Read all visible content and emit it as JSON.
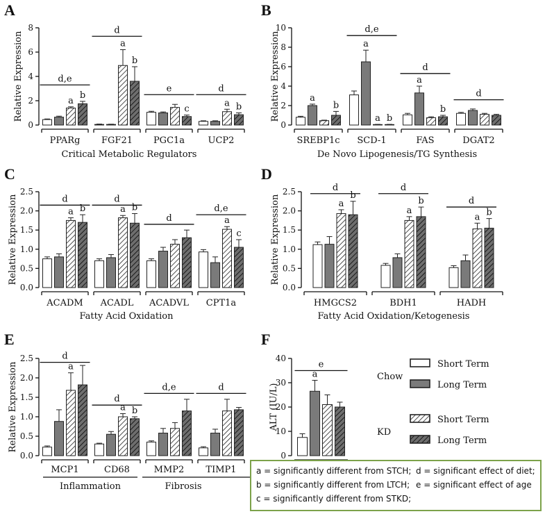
{
  "legend": {
    "chow_label": "Chow",
    "kd_label": "KD",
    "short_term": "Short Term",
    "long_term": "Long Term",
    "colors": {
      "white": "#ffffff",
      "gray": "#7a7a7a",
      "hatch_light": "#ffffff",
      "hatch_dark": "#6e6e6e",
      "box_border": "#7ca24a"
    }
  },
  "footnote": {
    "a": "a = significantly different from STCH;",
    "b": "b = significantly different from LTCH;",
    "c": "c = significantly different from STKD;",
    "d": "d = significant effect of diet;",
    "e": "e = significant effect of age"
  },
  "chart_data": [
    {
      "panel": "A",
      "type": "bar",
      "ylabel": "Relative Expression",
      "xlabel": "Critical Metabolic Regulators",
      "ylim": [
        0,
        8
      ],
      "yticks": [
        0,
        2,
        4,
        6,
        8
      ],
      "categories": [
        "PPARg",
        "FGF21",
        "PGC1a",
        "UCP2"
      ],
      "series": [
        {
          "values": [
            0.45,
            0.05,
            1.05,
            0.3
          ],
          "errors": [
            0.05,
            0.03,
            0.08,
            0.05
          ]
        },
        {
          "values": [
            0.65,
            0.05,
            1.0,
            0.3
          ],
          "errors": [
            0.08,
            0.02,
            0.08,
            0.05
          ]
        },
        {
          "values": [
            1.4,
            4.9,
            1.45,
            1.1
          ],
          "errors": [
            0.1,
            1.3,
            0.25,
            0.2
          ]
        },
        {
          "values": [
            1.75,
            3.6,
            0.7,
            0.85
          ],
          "errors": [
            0.2,
            1.2,
            0.12,
            0.15
          ]
        }
      ],
      "bar_letters": [
        [
          "",
          "",
          "a",
          "b"
        ],
        [
          "",
          "",
          "a",
          "b"
        ],
        [
          "",
          "",
          "",
          "c"
        ],
        [
          "",
          "",
          "a",
          "b"
        ]
      ],
      "brackets": [
        {
          "label": "d,e",
          "y": 3.3
        },
        {
          "label": "d",
          "y": 7.3
        },
        {
          "label": "e",
          "y": 2.5
        },
        {
          "label": "d",
          "y": 2.5
        }
      ]
    },
    {
      "panel": "B",
      "type": "bar",
      "ylabel": "Relative Expression",
      "xlabel": "De Novo Lipogenesis/TG Synthesis",
      "ylim": [
        0,
        10
      ],
      "yticks": [
        0,
        2,
        4,
        6,
        8,
        10
      ],
      "categories": [
        "SREBP1c",
        "SCD-1",
        "FAS",
        "DGAT2"
      ],
      "series": [
        {
          "values": [
            0.8,
            3.1,
            1.05,
            1.2
          ],
          "errors": [
            0.1,
            0.4,
            0.15,
            0.1
          ]
        },
        {
          "values": [
            2.0,
            6.5,
            3.3,
            1.5
          ],
          "errors": [
            0.15,
            1.2,
            0.7,
            0.15
          ]
        },
        {
          "values": [
            0.45,
            0.05,
            0.75,
            1.1
          ],
          "errors": [
            0.05,
            0.02,
            0.1,
            0.1
          ]
        },
        {
          "values": [
            1.0,
            0.05,
            0.85,
            1.0
          ],
          "errors": [
            0.4,
            0.02,
            0.15,
            0.1
          ]
        }
      ],
      "bar_letters": [
        [
          "",
          "a",
          "",
          "b"
        ],
        [
          "",
          "a",
          "a",
          "b"
        ],
        [
          "",
          "a",
          "",
          "b"
        ],
        [
          "",
          "",
          "",
          ""
        ]
      ],
      "brackets": [
        {
          "label": "",
          "y": 0
        },
        {
          "label": "d,e",
          "y": 9.2
        },
        {
          "label": "d",
          "y": 5.3
        },
        {
          "label": "d",
          "y": 2.6
        }
      ]
    },
    {
      "panel": "C",
      "type": "bar",
      "ylabel": "Relative Expression",
      "xlabel": "Fatty Acid Oxidation",
      "ylim": [
        0,
        2.5
      ],
      "yticks": [
        0,
        0.5,
        1.0,
        1.5,
        2.0,
        2.5
      ],
      "categories": [
        "ACADM",
        "ACADL",
        "ACADVL",
        "CPT1a"
      ],
      "series": [
        {
          "values": [
            0.75,
            0.7,
            0.7,
            0.93
          ],
          "errors": [
            0.05,
            0.05,
            0.05,
            0.06
          ]
        },
        {
          "values": [
            0.8,
            0.78,
            0.95,
            0.65
          ],
          "errors": [
            0.08,
            0.08,
            0.1,
            0.15
          ]
        },
        {
          "values": [
            1.75,
            1.82,
            1.13,
            1.52
          ],
          "errors": [
            0.07,
            0.06,
            0.12,
            0.07
          ]
        },
        {
          "values": [
            1.7,
            1.68,
            1.3,
            1.05
          ],
          "errors": [
            0.2,
            0.25,
            0.2,
            0.2
          ]
        }
      ],
      "bar_letters": [
        [
          "",
          "",
          "a",
          "b"
        ],
        [
          "",
          "",
          "a",
          "b"
        ],
        [
          "",
          "",
          "",
          ""
        ],
        [
          "",
          "",
          "a",
          "c"
        ]
      ],
      "brackets": [
        {
          "label": "d",
          "y": 2.15
        },
        {
          "label": "d",
          "y": 2.15
        },
        {
          "label": "d",
          "y": 1.65
        },
        {
          "label": "d,e",
          "y": 1.9
        }
      ]
    },
    {
      "panel": "D",
      "type": "bar",
      "ylabel": "Relative Expression",
      "xlabel": "Fatty Acid Oxidation/Ketogenesis",
      "ylim": [
        0,
        2.5
      ],
      "yticks": [
        0,
        0.5,
        1.0,
        1.5,
        2.0,
        2.5
      ],
      "categories": [
        "HMGCS2",
        "BDH1",
        "HADH"
      ],
      "series": [
        {
          "values": [
            1.12,
            0.58,
            0.52
          ],
          "errors": [
            0.07,
            0.05,
            0.05
          ]
        },
        {
          "values": [
            1.13,
            0.78,
            0.7
          ],
          "errors": [
            0.2,
            0.1,
            0.15
          ]
        },
        {
          "values": [
            1.93,
            1.75,
            1.53
          ],
          "errors": [
            0.1,
            0.1,
            0.15
          ]
        },
        {
          "values": [
            1.9,
            1.85,
            1.55
          ],
          "errors": [
            0.35,
            0.25,
            0.25
          ]
        }
      ],
      "bar_letters": [
        [
          "",
          "",
          "a",
          "b"
        ],
        [
          "",
          "",
          "a",
          "b"
        ],
        [
          "",
          "",
          "a",
          "b"
        ]
      ],
      "brackets": [
        {
          "label": "d",
          "y": 2.45
        },
        {
          "label": "d",
          "y": 2.45
        },
        {
          "label": "d",
          "y": 2.1
        }
      ]
    },
    {
      "panel": "E",
      "type": "bar",
      "ylabel": "Relative Expression",
      "ylim": [
        0,
        2.5
      ],
      "yticks": [
        0,
        0.5,
        1.0,
        1.5,
        2.0,
        2.5
      ],
      "categories": [
        "MCP1",
        "CD68",
        "MMP2",
        "TIMP1"
      ],
      "group_labels": [
        "Inflammation",
        "Fibrosis"
      ],
      "series": [
        {
          "values": [
            0.22,
            0.3,
            0.35,
            0.2
          ],
          "errors": [
            0.03,
            0.02,
            0.03,
            0.03
          ]
        },
        {
          "values": [
            0.88,
            0.55,
            0.58,
            0.58
          ],
          "errors": [
            0.3,
            0.07,
            0.12,
            0.1
          ]
        },
        {
          "values": [
            1.68,
            1.0,
            0.7,
            1.15
          ],
          "errors": [
            0.45,
            0.08,
            0.15,
            0.3
          ]
        },
        {
          "values": [
            1.82,
            0.95,
            1.15,
            1.18
          ],
          "errors": [
            0.5,
            0.05,
            0.3,
            0.06
          ]
        }
      ],
      "bar_letters": [
        [
          "",
          "",
          "a",
          ""
        ],
        [
          "",
          "",
          "a",
          "b"
        ],
        [
          "",
          "",
          "",
          ""
        ],
        [
          "",
          "",
          "",
          ""
        ]
      ],
      "brackets": [
        {
          "label": "d",
          "y": 2.4
        },
        {
          "label": "d",
          "y": 1.3
        },
        {
          "label": "d,e",
          "y": 1.6
        },
        {
          "label": "d",
          "y": 1.6
        }
      ]
    },
    {
      "panel": "F",
      "type": "bar",
      "ylabel": "ALT (IU/L)",
      "ylim": [
        0,
        40
      ],
      "yticks": [
        0,
        10,
        20,
        30,
        40
      ],
      "categories": [
        ""
      ],
      "series": [
        {
          "values": [
            7.5
          ],
          "errors": [
            1.5
          ]
        },
        {
          "values": [
            26.5
          ],
          "errors": [
            4.5
          ]
        },
        {
          "values": [
            21
          ],
          "errors": [
            4
          ]
        },
        {
          "values": [
            20
          ],
          "errors": [
            2
          ]
        }
      ],
      "bar_letters": [
        [
          "",
          "a",
          "",
          ""
        ]
      ],
      "brackets": [
        {
          "label": "e",
          "y": 35
        }
      ]
    }
  ]
}
